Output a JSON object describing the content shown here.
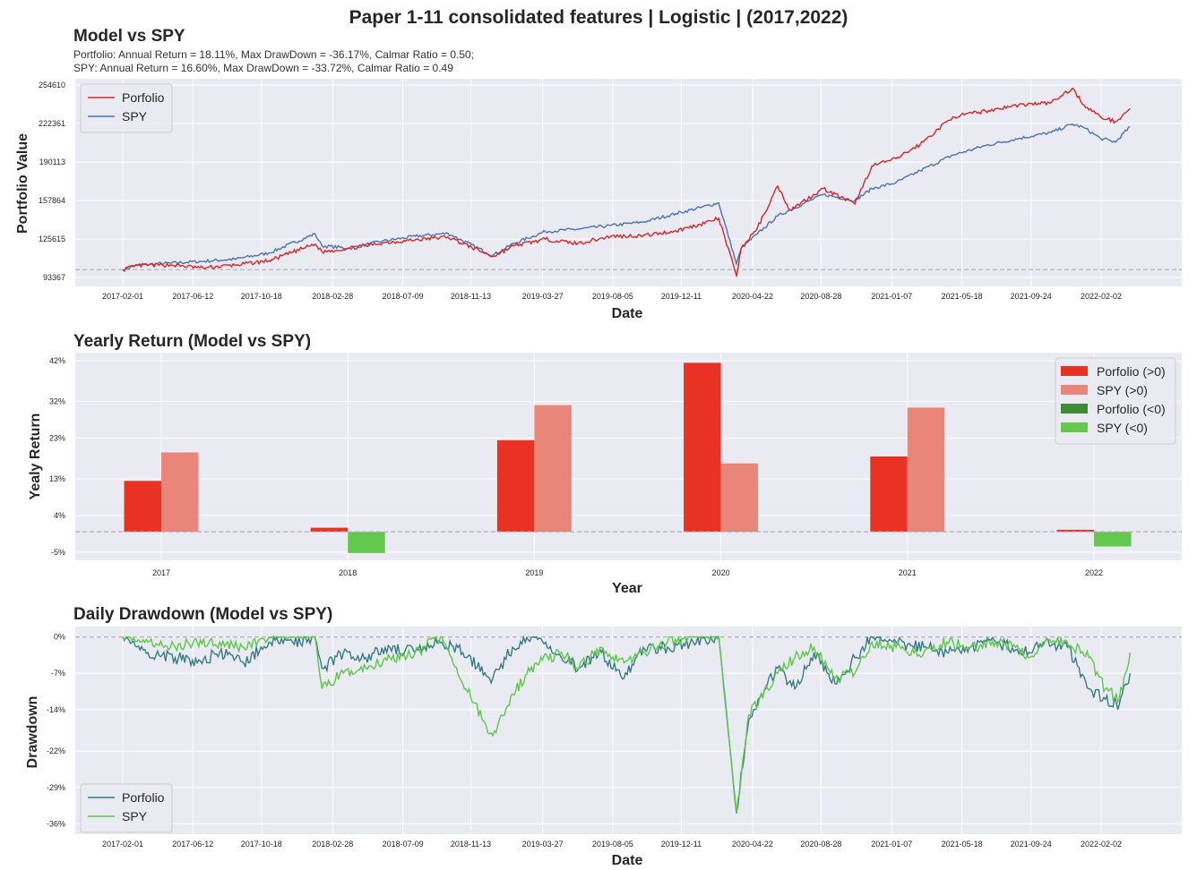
{
  "suptitle": "Paper 1-11 consolidated features | Logistic | (2017,2022)",
  "colors": {
    "axes_bg": "#eaeaf2",
    "grid": "#ffffff",
    "portfolio_line": "#d62728",
    "spy_line": "#4c72b0",
    "bar_portfolio_pos": "#e93224",
    "bar_spy_pos": "#ea8579",
    "bar_portfolio_neg": "#3f8b36",
    "bar_spy_neg": "#63c94c",
    "dd_portfolio": "#367b86",
    "dd_spy": "#5cc849",
    "ref_line": "#b0b0b8"
  },
  "chart_data": [
    {
      "id": "value",
      "type": "line",
      "title": "Model vs SPY",
      "subtitle_lines": [
        "Portfolio: Annual Return = 18.11%, Max DrawDown = -36.17%, Calmar Ratio = 0.50;",
        "SPY: Annual Return = 16.60%, Max DrawDown = -33.72%, Calmar Ratio = 0.49"
      ],
      "xlabel": "Date",
      "ylabel": "Portfolio Value",
      "xticks": [
        "2017-02-01",
        "2017-06-12",
        "2017-10-18",
        "2018-02-28",
        "2018-07-09",
        "2018-11-13",
        "2019-03-27",
        "2019-08-05",
        "2019-12-11",
        "2020-04-22",
        "2020-08-28",
        "2021-01-07",
        "2021-05-18",
        "2021-09-24",
        "2022-02-02"
      ],
      "yticks": [
        "93367",
        "125615",
        "157864",
        "190113",
        "222361",
        "254610"
      ],
      "ylim": [
        86000,
        260000
      ],
      "reference_y": 100000,
      "legend": [
        "Porfolio",
        "SPY"
      ],
      "legend_position": "upper-left",
      "series": [
        {
          "name": "Porfolio",
          "x_dates": [
            "2017-02-01",
            "2017-03-01",
            "2017-05-01",
            "2017-07-01",
            "2017-09-01",
            "2017-11-01",
            "2018-01-26",
            "2018-02-08",
            "2018-04-01",
            "2018-06-01",
            "2018-08-01",
            "2018-10-01",
            "2018-12-24",
            "2019-02-01",
            "2019-04-01",
            "2019-06-01",
            "2019-08-01",
            "2019-10-01",
            "2019-12-01",
            "2020-01-15",
            "2020-02-19",
            "2020-03-23",
            "2020-04-01",
            "2020-05-01",
            "2020-06-08",
            "2020-07-01",
            "2020-09-01",
            "2020-10-30",
            "2020-12-01",
            "2021-01-15",
            "2021-03-01",
            "2021-05-01",
            "2021-07-01",
            "2021-09-01",
            "2021-11-01",
            "2021-12-10",
            "2022-01-01",
            "2022-02-01",
            "2022-03-01",
            "2022-03-28"
          ],
          "values": [
            100000,
            103500,
            104000,
            101500,
            104000,
            107500,
            121500,
            115000,
            118000,
            122500,
            125000,
            127500,
            111000,
            120000,
            125500,
            122000,
            128000,
            128500,
            132500,
            138000,
            143000,
            95000,
            118000,
            135000,
            170000,
            150000,
            168000,
            155000,
            187000,
            193000,
            205000,
            228000,
            233000,
            238000,
            240000,
            252000,
            238000,
            228000,
            224000,
            235000
          ]
        },
        {
          "name": "SPY",
          "x_dates": [
            "2017-02-01",
            "2017-03-01",
            "2017-05-01",
            "2017-07-01",
            "2017-09-01",
            "2017-11-01",
            "2018-01-26",
            "2018-02-08",
            "2018-04-01",
            "2018-06-01",
            "2018-08-01",
            "2018-10-01",
            "2018-12-24",
            "2019-02-01",
            "2019-04-01",
            "2019-06-01",
            "2019-08-01",
            "2019-10-01",
            "2019-12-01",
            "2020-01-15",
            "2020-02-19",
            "2020-03-23",
            "2020-04-01",
            "2020-05-01",
            "2020-06-08",
            "2020-07-01",
            "2020-09-01",
            "2020-10-30",
            "2020-12-01",
            "2021-01-15",
            "2021-03-01",
            "2021-05-01",
            "2021-07-01",
            "2021-09-01",
            "2021-11-01",
            "2021-12-10",
            "2022-01-01",
            "2022-02-01",
            "2022-03-01",
            "2022-03-28"
          ],
          "values": [
            100000,
            104000,
            105500,
            107000,
            109000,
            114000,
            130000,
            120000,
            118000,
            124000,
            128000,
            130500,
            112000,
            122000,
            132000,
            134000,
            137000,
            140000,
            147000,
            152000,
            156000,
            105000,
            118000,
            130000,
            145000,
            150000,
            163000,
            158000,
            168000,
            173000,
            183000,
            196000,
            204000,
            210000,
            215000,
            222000,
            219000,
            210000,
            207000,
            220000
          ]
        }
      ]
    },
    {
      "id": "yearly",
      "type": "bar",
      "title": "Yearly Return (Model vs SPY)",
      "xlabel": "Year",
      "ylabel": "Yealy Return",
      "categories": [
        "2017",
        "2018",
        "2019",
        "2020",
        "2021",
        "2022"
      ],
      "yticks": [
        "-5%",
        "4%",
        "13%",
        "23%",
        "32%",
        "42%"
      ],
      "ylim": [
        -7.0,
        44.0
      ],
      "legend": [
        "Porfolio (>0)",
        "SPY (>0)",
        "Porfolio (<0)",
        "SPY (<0)"
      ],
      "legend_position": "upper-right",
      "series": [
        {
          "name": "Portfolio",
          "values": [
            12.5,
            1.0,
            22.5,
            41.5,
            18.5,
            0.5
          ]
        },
        {
          "name": "SPY",
          "values": [
            19.5,
            -5.2,
            31.1,
            16.8,
            30.5,
            -3.6
          ]
        }
      ]
    },
    {
      "id": "drawdown",
      "type": "line",
      "title": "Daily Drawdown (Model vs SPY)",
      "xlabel": "Date",
      "ylabel": "Drawdown",
      "xticks": [
        "2017-02-01",
        "2017-06-12",
        "2017-10-18",
        "2018-02-28",
        "2018-07-09",
        "2018-11-13",
        "2019-03-27",
        "2019-08-05",
        "2019-12-11",
        "2020-04-22",
        "2020-08-28",
        "2021-01-07",
        "2021-05-18",
        "2021-09-24",
        "2022-02-02"
      ],
      "yticks": [
        "0%",
        "-7%",
        "-14%",
        "-22%",
        "-29%",
        "-36%"
      ],
      "ylim": [
        -38,
        2
      ],
      "legend": [
        "Porfolio",
        "SPY"
      ],
      "legend_position": "lower-left",
      "series": [
        {
          "name": "Porfolio",
          "x_dates": [
            "2017-02-01",
            "2017-03-20",
            "2017-05-10",
            "2017-06-20",
            "2017-08-01",
            "2017-09-15",
            "2017-11-01",
            "2017-12-15",
            "2018-01-26",
            "2018-02-08",
            "2018-03-20",
            "2018-05-01",
            "2018-06-15",
            "2018-08-01",
            "2018-09-20",
            "2018-10-29",
            "2018-12-24",
            "2019-01-30",
            "2019-03-15",
            "2019-05-01",
            "2019-06-03",
            "2019-07-15",
            "2019-08-26",
            "2019-10-01",
            "2019-11-15",
            "2020-01-02",
            "2020-02-19",
            "2020-03-23",
            "2020-04-15",
            "2020-05-20",
            "2020-06-08",
            "2020-07-10",
            "2020-08-15",
            "2020-09-23",
            "2020-10-30",
            "2020-12-01",
            "2021-01-15",
            "2021-03-08",
            "2021-04-20",
            "2021-06-01",
            "2021-07-20",
            "2021-08-20",
            "2021-09-20",
            "2021-10-20",
            "2021-12-01",
            "2022-01-10",
            "2022-02-10",
            "2022-03-08",
            "2022-03-28"
          ],
          "values": [
            0,
            -3,
            -4,
            -5,
            -3,
            -5,
            -1,
            -1,
            0,
            -6,
            -3,
            -4,
            -2,
            -3,
            -1,
            -3,
            -8,
            -2,
            0,
            -4,
            -6,
            -3,
            -8,
            -2,
            -2,
            -1,
            0,
            -34,
            -16,
            -9,
            -6,
            -10,
            -3,
            -9,
            -4,
            0,
            -1,
            -2,
            -3,
            -2,
            -1,
            -2,
            -3,
            -1,
            -2,
            -10,
            -12,
            -13,
            -7
          ]
        },
        {
          "name": "SPY",
          "x_dates": [
            "2017-02-01",
            "2017-03-20",
            "2017-05-10",
            "2017-06-20",
            "2017-08-01",
            "2017-09-15",
            "2017-11-01",
            "2017-12-15",
            "2018-01-26",
            "2018-02-08",
            "2018-03-20",
            "2018-05-01",
            "2018-06-15",
            "2018-08-01",
            "2018-09-20",
            "2018-10-29",
            "2018-12-24",
            "2019-01-30",
            "2019-03-15",
            "2019-05-01",
            "2019-06-03",
            "2019-07-15",
            "2019-08-26",
            "2019-10-01",
            "2019-11-15",
            "2020-01-02",
            "2020-02-19",
            "2020-03-23",
            "2020-04-15",
            "2020-05-20",
            "2020-06-08",
            "2020-07-10",
            "2020-08-15",
            "2020-09-23",
            "2020-10-30",
            "2020-12-01",
            "2021-01-15",
            "2021-03-08",
            "2021-04-20",
            "2021-06-01",
            "2021-07-20",
            "2021-08-20",
            "2021-09-20",
            "2021-10-20",
            "2021-12-01",
            "2022-01-10",
            "2022-02-10",
            "2022-03-08",
            "2022-03-28"
          ],
          "values": [
            0,
            -1,
            -2,
            -1,
            -1,
            -2,
            0,
            0,
            0,
            -10,
            -7,
            -6,
            -4,
            -3,
            0,
            -9,
            -19,
            -11,
            -5,
            -3,
            -6,
            -2,
            -5,
            -3,
            -1,
            0,
            0,
            -34,
            -15,
            -10,
            -7,
            -4,
            -2,
            -8,
            -7,
            -1,
            -2,
            -3,
            -1,
            -2,
            -1,
            -2,
            -4,
            -1,
            -1,
            -4,
            -10,
            -12,
            -3
          ]
        }
      ]
    }
  ]
}
